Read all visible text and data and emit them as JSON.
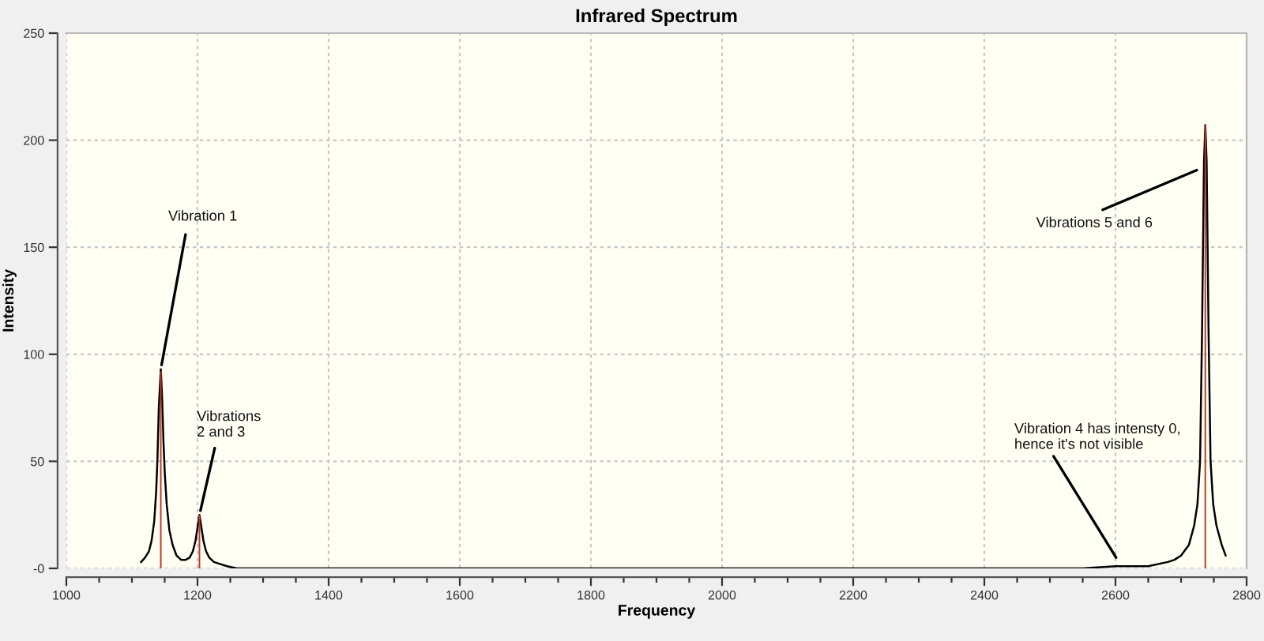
{
  "chart_data": {
    "type": "line",
    "title": "Infrared Spectrum",
    "xlabel": "Frequency",
    "ylabel": "Intensity",
    "xlim": [
      1000,
      2800
    ],
    "ylim": [
      0,
      250
    ],
    "xticks": [
      1000,
      {
        "value": 1050,
        "label": null
      },
      {
        "value": 1100,
        "label": null
      },
      {
        "value": 1150,
        "label": null
      },
      1200,
      {
        "value": 1250,
        "label": null
      },
      {
        "value": 1300,
        "label": null
      },
      {
        "value": 1350,
        "label": null
      },
      1400,
      {
        "value": 1450,
        "label": null
      },
      {
        "value": 1500,
        "label": null
      },
      {
        "value": 1550,
        "label": null
      },
      1600,
      {
        "value": 1650,
        "label": null
      },
      {
        "value": 1700,
        "label": null
      },
      {
        "value": 1750,
        "label": null
      },
      1800,
      {
        "value": 1850,
        "label": null
      },
      {
        "value": 1900,
        "label": null
      },
      {
        "value": 1950,
        "label": null
      },
      2000,
      {
        "value": 2050,
        "label": null
      },
      {
        "value": 2100,
        "label": null
      },
      {
        "value": 2150,
        "label": null
      },
      2200,
      {
        "value": 2250,
        "label": null
      },
      {
        "value": 2300,
        "label": null
      },
      {
        "value": 2350,
        "label": null
      },
      2400,
      {
        "value": 2450,
        "label": null
      },
      {
        "value": 2500,
        "label": null
      },
      {
        "value": 2550,
        "label": null
      },
      2600,
      {
        "value": 2650,
        "label": null
      },
      {
        "value": 2700,
        "label": null
      },
      {
        "value": 2750,
        "label": null
      },
      2800
    ],
    "yticks": [
      {
        "value": 0,
        "label": "-0"
      },
      50,
      100,
      150,
      200,
      250
    ],
    "grid": true,
    "series": [
      {
        "color": "#000000",
        "x": [
          1114,
          1120,
          1126,
          1130,
          1134,
          1137,
          1139,
          1141,
          1144,
          1146,
          1148,
          1150,
          1153,
          1157,
          1162,
          1168,
          1175,
          1182,
          1188,
          1193,
          1197,
          1200,
          1203,
          1206,
          1209,
          1213,
          1218,
          1225,
          1235,
          1245,
          1260,
          1400,
          1600,
          1800,
          2000,
          2200,
          2400,
          2550,
          2600,
          2650,
          2680,
          2690,
          2700,
          2712,
          2720,
          2725,
          2729,
          2732,
          2735,
          2737,
          2739,
          2742,
          2745,
          2749,
          2754,
          2762,
          2768
        ],
        "values": [
          3,
          5,
          8,
          13,
          22,
          36,
          52,
          75,
          93,
          80,
          60,
          45,
          30,
          18,
          11,
          6,
          4,
          4,
          5,
          8,
          13,
          19,
          25,
          19,
          13,
          8,
          5,
          3,
          2,
          1,
          0,
          0,
          0,
          0,
          0,
          0,
          0,
          0,
          1,
          1,
          3,
          4,
          6,
          11,
          20,
          30,
          50,
          110,
          190,
          207,
          190,
          110,
          50,
          30,
          20,
          11,
          6
        ]
      },
      {
        "type": "bar",
        "color": "#c0392b",
        "x": [
          1144,
          1203,
          2737
        ],
        "values": [
          92,
          25,
          207
        ]
      }
    ],
    "annotations": [
      {
        "text": "Vibration 1",
        "x": 1144,
        "y": 93
      },
      {
        "text": "Vibrations\n2 and 3",
        "x": 1203,
        "y": 25
      },
      {
        "text": "Vibrations 5 and 6",
        "x": 2724,
        "y": 186
      },
      {
        "text": "Vibration 4 has intensty 0,\nhence it's not visible",
        "x": 2601,
        "y": 5
      }
    ]
  }
}
